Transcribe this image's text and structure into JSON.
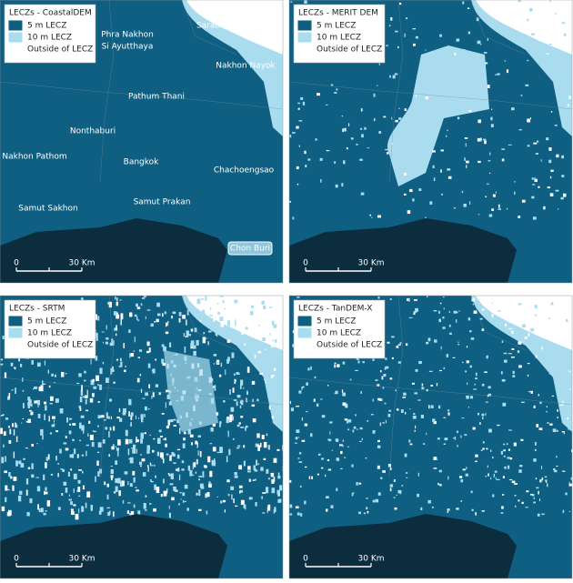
{
  "panels": [
    {
      "title": "LECZs - CoastalDEM",
      "legend": [
        {
          "label": "5 m LECZ",
          "color": "#0f5f82"
        },
        {
          "label": "10 m LECZ",
          "color": "#a9dcef"
        },
        {
          "label": "Outside of LECZ",
          "color": "#ffffff"
        }
      ],
      "scale": [
        "0",
        "30 Km"
      ],
      "places": [
        {
          "lines": [
            "Saraburi"
          ]
        },
        {
          "lines": [
            "Phra Nakhon",
            "Si Ayutthaya"
          ]
        },
        {
          "lines": [
            "Nakhon Nayok"
          ]
        },
        {
          "lines": [
            "Pathum Thani"
          ]
        },
        {
          "lines": [
            "Nonthaburi"
          ]
        },
        {
          "lines": [
            "Nakhon Pathom"
          ]
        },
        {
          "lines": [
            "Bangkok"
          ]
        },
        {
          "lines": [
            "Chachoengsao"
          ]
        },
        {
          "lines": [
            "Samut Prakan"
          ]
        },
        {
          "lines": [
            "Samut Sakhon"
          ]
        },
        {
          "lines": [
            "Chon Buri"
          ]
        }
      ]
    },
    {
      "title": "LECZs - MERIT DEM",
      "legend": [
        {
          "label": "5 m LECZ",
          "color": "#0f5f82"
        },
        {
          "label": "10 m LECZ",
          "color": "#a9dcef"
        },
        {
          "label": "Outside of LECZ",
          "color": "#ffffff"
        }
      ],
      "scale": [
        "0",
        "30 Km"
      ]
    },
    {
      "title": "LECZs - SRTM",
      "legend": [
        {
          "label": "5 m LECZ",
          "color": "#0f5f82"
        },
        {
          "label": "10 m LECZ",
          "color": "#a9dcef"
        },
        {
          "label": "Outside of LECZ",
          "color": "#ffffff"
        }
      ],
      "scale": [
        "0",
        "30 Km"
      ]
    },
    {
      "title": "LECZs - TanDEM-X",
      "legend": [
        {
          "label": "5 m LECZ",
          "color": "#0f5f82"
        },
        {
          "label": "10 m LECZ",
          "color": "#a9dcef"
        },
        {
          "label": "Outside of LECZ",
          "color": "#ffffff"
        }
      ],
      "scale": [
        "0",
        "30 Km"
      ]
    }
  ]
}
